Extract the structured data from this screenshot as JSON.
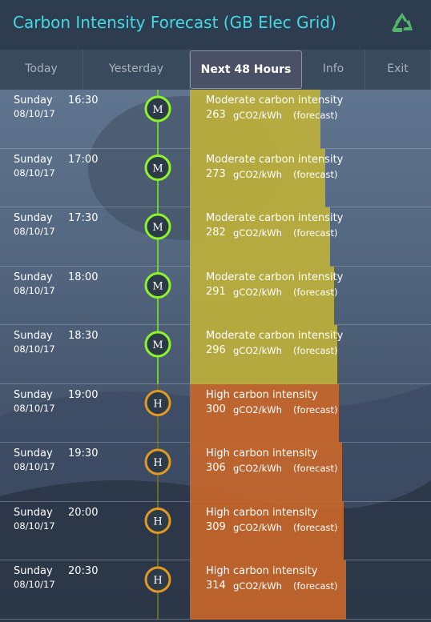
{
  "header": {
    "title": "Carbon Intensity Forecast (GB Elec Grid)"
  },
  "tabs": [
    {
      "label": "Today",
      "active": false
    },
    {
      "label": "Yesterday",
      "active": false
    },
    {
      "label": "Next 48 Hours",
      "active": true
    },
    {
      "label": "Info",
      "active": false
    },
    {
      "label": "Exit",
      "active": false
    }
  ],
  "rows": [
    {
      "day": "Sunday",
      "time": "16:30",
      "date": "08/10/17",
      "badge": "M",
      "label": "Moderate carbon intensity",
      "value": 263,
      "unit": "gCO2/kWh",
      "note": "(forecast)",
      "color": "#bdb03a"
    },
    {
      "day": "Sunday",
      "time": "17:00",
      "date": "08/10/17",
      "badge": "M",
      "label": "Moderate carbon intensity",
      "value": 273,
      "unit": "gCO2/kWh",
      "note": "(forecast)",
      "color": "#bdb03a"
    },
    {
      "day": "Sunday",
      "time": "17:30",
      "date": "08/10/17",
      "badge": "M",
      "label": "Moderate carbon intensity",
      "value": 282,
      "unit": "gCO2/kWh",
      "note": "(forecast)",
      "color": "#bdb03a"
    },
    {
      "day": "Sunday",
      "time": "18:00",
      "date": "08/10/17",
      "badge": "M",
      "label": "Moderate carbon intensity",
      "value": 291,
      "unit": "gCO2/kWh",
      "note": "(forecast)",
      "color": "#bdb03a"
    },
    {
      "day": "Sunday",
      "time": "18:30",
      "date": "08/10/17",
      "badge": "M",
      "label": "Moderate carbon intensity",
      "value": 296,
      "unit": "gCO2/kWh",
      "note": "(forecast)",
      "color": "#bdb03a"
    },
    {
      "day": "Sunday",
      "time": "19:00",
      "date": "08/10/17",
      "badge": "H",
      "label": "High carbon intensity",
      "value": 300,
      "unit": "gCO2/kWh",
      "note": "(forecast)",
      "color": "#c8662a"
    },
    {
      "day": "Sunday",
      "time": "19:30",
      "date": "08/10/17",
      "badge": "H",
      "label": "High carbon intensity",
      "value": 306,
      "unit": "gCO2/kWh",
      "note": "(forecast)",
      "color": "#c8662a"
    },
    {
      "day": "Sunday",
      "time": "20:00",
      "date": "08/10/17",
      "badge": "H",
      "label": "High carbon intensity",
      "value": 309,
      "unit": "gCO2/kWh",
      "note": "(forecast)",
      "color": "#c8662a"
    },
    {
      "day": "Sunday",
      "time": "20:30",
      "date": "08/10/17",
      "badge": "H",
      "label": "High carbon intensity",
      "value": 314,
      "unit": "gCO2/kWh",
      "note": "(forecast)",
      "color": "#c8662a"
    }
  ]
}
